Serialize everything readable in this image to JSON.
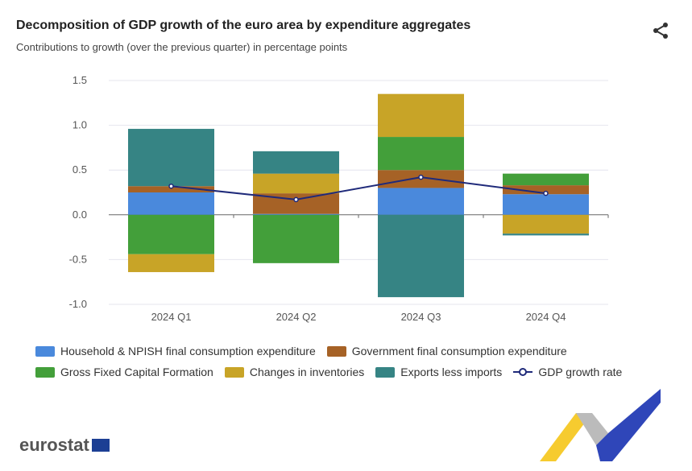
{
  "header": {
    "title": "Decomposition of GDP growth of the euro area by expenditure aggregates",
    "subtitle": "Contributions to growth (over the previous quarter) in percentage points",
    "share_icon": "share-icon"
  },
  "logo": {
    "text": "eurostat"
  },
  "chart_data": {
    "type": "bar",
    "stacked": true,
    "title": "Decomposition of GDP growth of the euro area by expenditure aggregates",
    "subtitle": "Contributions to growth (over the previous quarter) in percentage points",
    "categories": [
      "2024 Q1",
      "2024 Q2",
      "2024 Q3",
      "2024 Q4"
    ],
    "ylim": [
      -1.0,
      1.5
    ],
    "yticks": [
      1.5,
      1.0,
      0.5,
      0.0,
      -0.5,
      -1.0
    ],
    "ytick_labels": [
      "1.5",
      "1.0",
      "0.5",
      "0.0",
      "-0.5",
      "-1.0"
    ],
    "grid": true,
    "legend_position": "bottom",
    "series": [
      {
        "name": "Household & NPISH final consumption expenditure",
        "color": "#4a89dc",
        "values": [
          0.25,
          0.01,
          0.3,
          0.23
        ]
      },
      {
        "name": "Government final consumption expenditure",
        "color": "#a66226",
        "values": [
          0.07,
          0.23,
          0.2,
          0.1
        ]
      },
      {
        "name": "Gross Fixed Capital Formation",
        "color": "#439f3a",
        "values": [
          -0.44,
          -0.54,
          0.37,
          0.13
        ]
      },
      {
        "name": "Changes in inventories",
        "color": "#c8a427",
        "values": [
          -0.2,
          0.22,
          0.48,
          -0.21
        ]
      },
      {
        "name": "Exports less imports",
        "color": "#368484",
        "values": [
          0.64,
          0.25,
          -0.92,
          -0.02
        ]
      }
    ],
    "line": {
      "name": "GDP growth rate",
      "color": "#1f2a7a",
      "values": [
        0.32,
        0.17,
        0.42,
        0.24
      ]
    }
  }
}
